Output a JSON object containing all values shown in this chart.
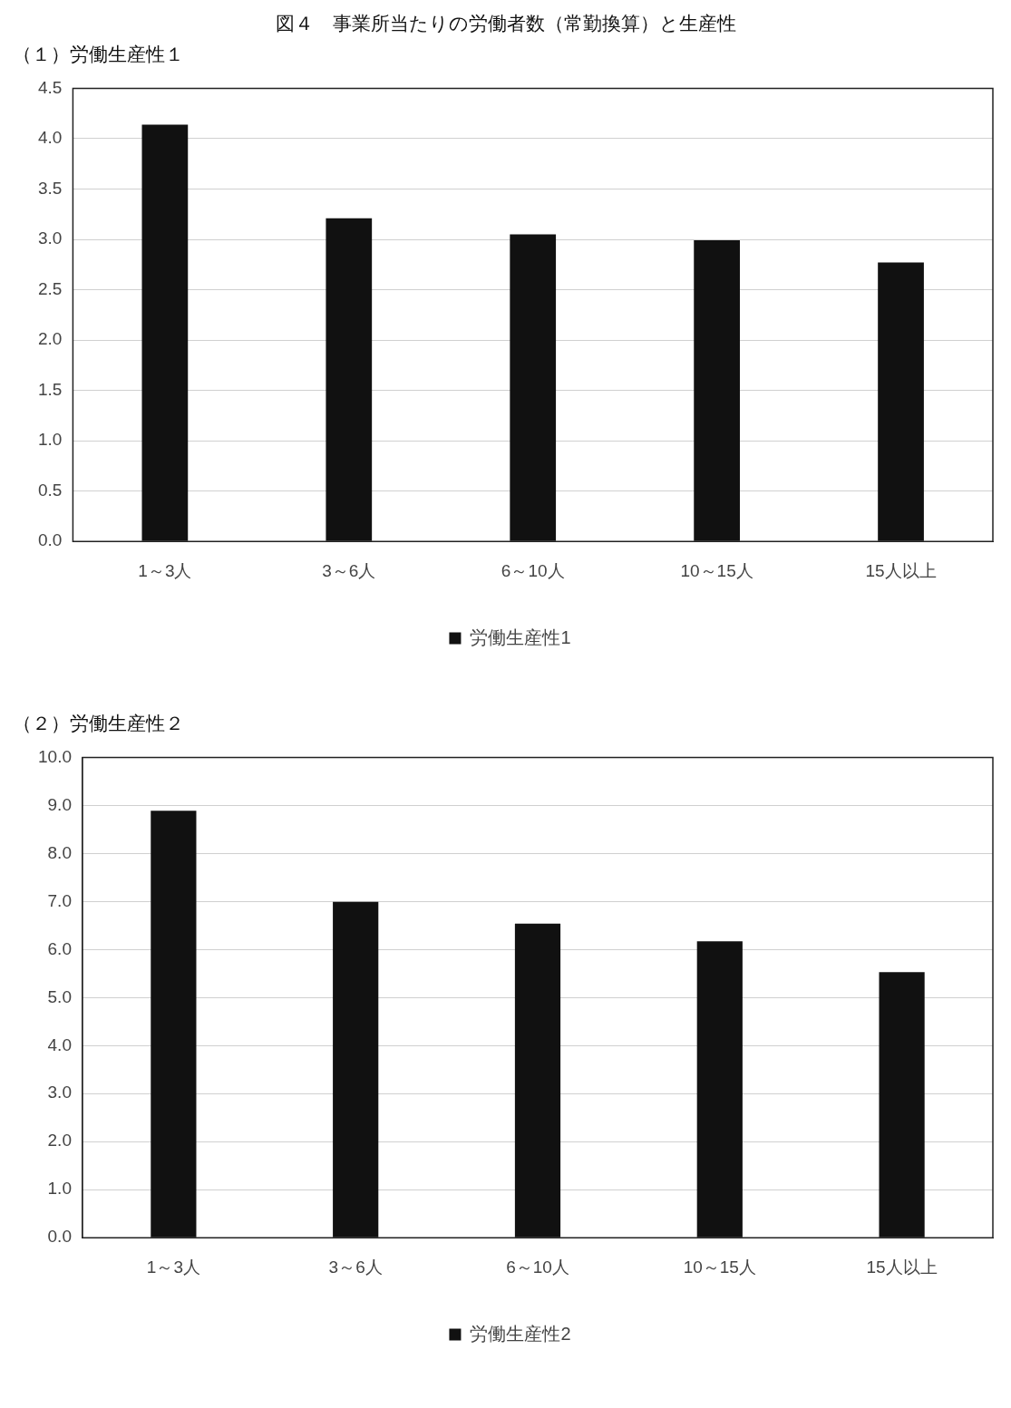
{
  "chart_data": [
    {
      "type": "bar",
      "title": "図４　事業所当たりの労働者数（常勤換算）と生産性",
      "subtitle": "（１）労働生産性１",
      "categories": [
        "1～3人",
        "3～6人",
        "6～10人",
        "10～15人",
        "15人以上"
      ],
      "series": [
        {
          "name": "労働生産性1",
          "color": "#111111",
          "values": [
            4.14,
            3.21,
            3.05,
            2.99,
            2.77
          ]
        }
      ],
      "ylim": [
        0,
        4.5
      ],
      "yticks": [
        {
          "value": 0,
          "label": "0.0"
        },
        {
          "value": 0.5,
          "label": "0.5"
        },
        {
          "value": 1,
          "label": "1.0"
        },
        {
          "value": 1.5,
          "label": "1.5"
        },
        {
          "value": 2,
          "label": "2.0"
        },
        {
          "value": 2.5,
          "label": "2.5"
        },
        {
          "value": 3,
          "label": "3.0"
        },
        {
          "value": 3.5,
          "label": "3.5"
        },
        {
          "value": 4,
          "label": "4.0"
        },
        {
          "value": 4.5,
          "label": "4.5"
        }
      ],
      "grid": "y",
      "legend": "bottom"
    },
    {
      "type": "bar",
      "title": "（２）労働生産性２",
      "categories": [
        "1～3人",
        "3～6人",
        "6～10人",
        "10～15人",
        "15人以上"
      ],
      "series": [
        {
          "name": "労働生産性2",
          "color": "#111111",
          "values": [
            8.89,
            6.99,
            6.54,
            6.17,
            5.53
          ]
        }
      ],
      "ylim": [
        0,
        10
      ],
      "yticks": [
        {
          "value": 0,
          "label": "0.0"
        },
        {
          "value": 1,
          "label": "1.0"
        },
        {
          "value": 2,
          "label": "2.0"
        },
        {
          "value": 3,
          "label": "3.0"
        },
        {
          "value": 4,
          "label": "4.0"
        },
        {
          "value": 5,
          "label": "5.0"
        },
        {
          "value": 6,
          "label": "6.0"
        },
        {
          "value": 7,
          "label": "7.0"
        },
        {
          "value": 8,
          "label": "8.0"
        },
        {
          "value": 9,
          "label": "9.0"
        },
        {
          "value": 10,
          "label": "10.0"
        }
      ],
      "grid": "y",
      "legend": "bottom"
    }
  ]
}
